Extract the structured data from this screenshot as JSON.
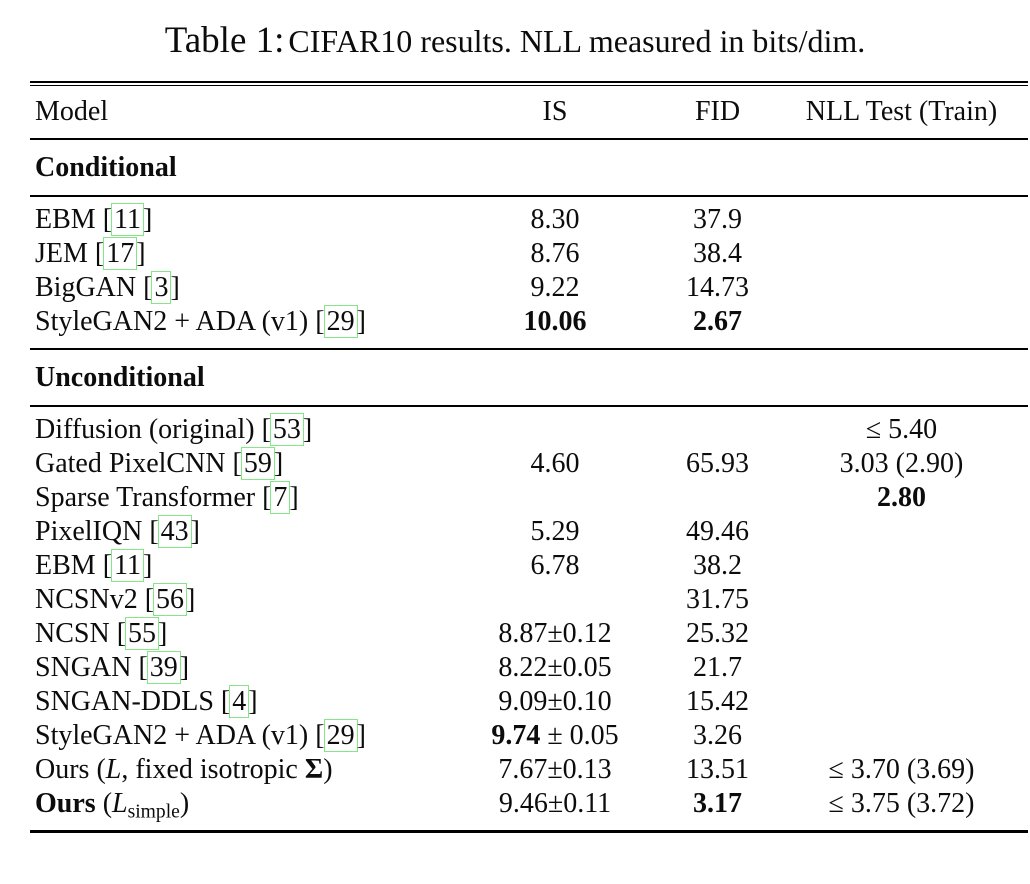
{
  "title": {
    "label": "Table 1:",
    "text": "CIFAR10 results. NLL measured in bits/dim."
  },
  "columns": [
    "Model",
    "IS",
    "FID",
    "NLL Test (Train)"
  ],
  "colors": {
    "citation_box": "#86e586",
    "text": "#0c0c0c",
    "background": "#ffffff"
  },
  "sections": [
    {
      "name": "Conditional",
      "rows": [
        {
          "model": [
            {
              "v": "EBM "
            },
            {
              "c": "11"
            }
          ],
          "is": [
            {
              "v": "8.30"
            }
          ],
          "fid": [
            {
              "v": "37.9"
            }
          ],
          "nll": []
        },
        {
          "model": [
            {
              "v": "JEM "
            },
            {
              "c": "17"
            }
          ],
          "is": [
            {
              "v": "8.76"
            }
          ],
          "fid": [
            {
              "v": "38.4"
            }
          ],
          "nll": []
        },
        {
          "model": [
            {
              "v": "BigGAN "
            },
            {
              "c": "3"
            }
          ],
          "is": [
            {
              "v": "9.22"
            }
          ],
          "fid": [
            {
              "v": "14.73"
            }
          ],
          "nll": []
        },
        {
          "model": [
            {
              "v": "StyleGAN2 + ADA (v1) "
            },
            {
              "c": "29"
            }
          ],
          "is": [
            {
              "v": "10.06",
              "b": true
            }
          ],
          "fid": [
            {
              "v": "2.67",
              "b": true
            }
          ],
          "nll": []
        }
      ]
    },
    {
      "name": "Unconditional",
      "rows": [
        {
          "model": [
            {
              "v": "Diffusion (original) "
            },
            {
              "c": "53"
            }
          ],
          "is": [],
          "fid": [],
          "nll": [
            {
              "v": "≤ 5.40"
            }
          ]
        },
        {
          "model": [
            {
              "v": "Gated PixelCNN "
            },
            {
              "c": "59"
            }
          ],
          "is": [
            {
              "v": "4.60"
            }
          ],
          "fid": [
            {
              "v": "65.93"
            }
          ],
          "nll": [
            {
              "v": "3.03 (2.90)"
            }
          ]
        },
        {
          "model": [
            {
              "v": "Sparse Transformer "
            },
            {
              "c": "7"
            }
          ],
          "is": [],
          "fid": [],
          "nll": [
            {
              "v": "2.80",
              "b": true
            }
          ]
        },
        {
          "model": [
            {
              "v": "PixelIQN "
            },
            {
              "c": "43"
            }
          ],
          "is": [
            {
              "v": "5.29"
            }
          ],
          "fid": [
            {
              "v": "49.46"
            }
          ],
          "nll": []
        },
        {
          "model": [
            {
              "v": "EBM "
            },
            {
              "c": "11"
            }
          ],
          "is": [
            {
              "v": "6.78"
            }
          ],
          "fid": [
            {
              "v": "38.2"
            }
          ],
          "nll": []
        },
        {
          "model": [
            {
              "v": "NCSNv2 "
            },
            {
              "c": "56"
            }
          ],
          "is": [],
          "fid": [
            {
              "v": "31.75"
            }
          ],
          "nll": []
        },
        {
          "model": [
            {
              "v": "NCSN "
            },
            {
              "c": "55"
            }
          ],
          "is": [
            {
              "v": "8.87±0.12"
            }
          ],
          "fid": [
            {
              "v": "25.32"
            }
          ],
          "nll": []
        },
        {
          "model": [
            {
              "v": "SNGAN "
            },
            {
              "c": "39"
            }
          ],
          "is": [
            {
              "v": "8.22±0.05"
            }
          ],
          "fid": [
            {
              "v": "21.7"
            }
          ],
          "nll": []
        },
        {
          "model": [
            {
              "v": "SNGAN-DDLS "
            },
            {
              "c": "4"
            }
          ],
          "is": [
            {
              "v": "9.09±0.10"
            }
          ],
          "fid": [
            {
              "v": "15.42"
            }
          ],
          "nll": []
        },
        {
          "model": [
            {
              "v": "StyleGAN2 + ADA (v1) "
            },
            {
              "c": "29"
            }
          ],
          "is": [
            {
              "v": "9.74",
              "b": true
            },
            {
              "v": " ± 0.05"
            }
          ],
          "fid": [
            {
              "v": "3.26"
            }
          ],
          "nll": []
        },
        {
          "model": [
            {
              "v": "Ours ("
            },
            {
              "v": "L",
              "i": true
            },
            {
              "v": ", fixed isotropic "
            },
            {
              "v": "Σ",
              "b": true
            },
            {
              "v": ")"
            }
          ],
          "is": [
            {
              "v": "7.67±0.13"
            }
          ],
          "fid": [
            {
              "v": "13.51"
            }
          ],
          "nll": [
            {
              "v": "≤ 3.70 (3.69)"
            }
          ]
        },
        {
          "model": [
            {
              "v": "Ours",
              "b": true
            },
            {
              "v": " ("
            },
            {
              "v": "L",
              "i": true
            },
            {
              "v": "simple",
              "sub": true
            },
            {
              "v": ")"
            }
          ],
          "is": [
            {
              "v": "9.46±0.11"
            }
          ],
          "fid": [
            {
              "v": "3.17",
              "b": true
            }
          ],
          "nll": [
            {
              "v": "≤ 3.75 (3.72)"
            }
          ]
        }
      ]
    }
  ]
}
